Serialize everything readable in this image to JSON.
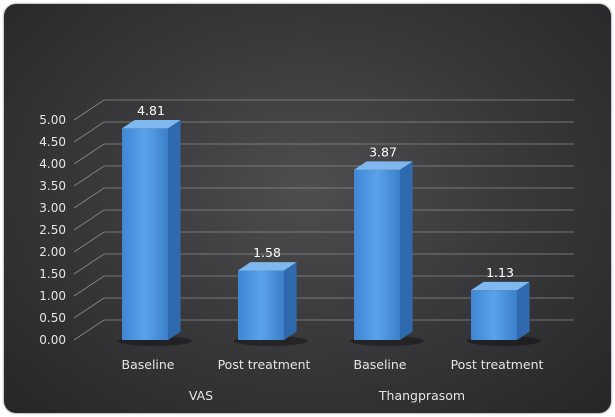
{
  "chart_data": {
    "type": "bar",
    "title": "",
    "xlabel": "",
    "ylabel": "",
    "ylim": [
      0,
      5
    ],
    "y_ticks": [
      "0.00",
      "0.50",
      "1.00",
      "1.50",
      "2.00",
      "2.50",
      "3.00",
      "3.50",
      "4.00",
      "4.50",
      "5.00"
    ],
    "grid": true,
    "style": "3d-column",
    "bar_color": "#4a90d9",
    "groups": [
      {
        "label": "VAS",
        "categories": [
          "Baseline",
          "Post treatment"
        ],
        "values": [
          4.81,
          1.58
        ],
        "value_labels": [
          "4.81",
          "1.58"
        ]
      },
      {
        "label": "Thangprasom",
        "categories": [
          "Baseline",
          "Post treatment"
        ],
        "values": [
          3.87,
          1.13
        ],
        "value_labels": [
          "3.87",
          "1.13"
        ]
      }
    ]
  }
}
